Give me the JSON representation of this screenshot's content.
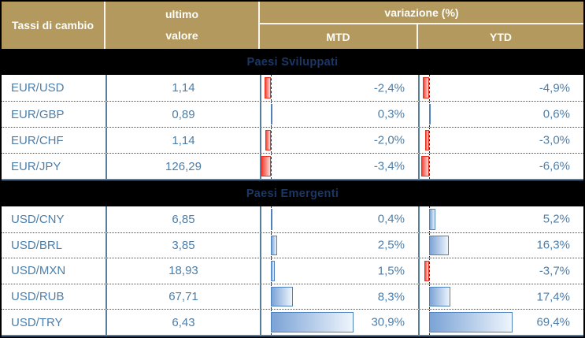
{
  "table": {
    "header": {
      "title": "Tassi di cambio",
      "last_value_line1": "ultimo",
      "last_value_line2": "valore",
      "variation": "variazione (%)",
      "mtd": "MTD",
      "ytd": "YTD"
    },
    "sections": [
      {
        "title": "Paesi Sviluppati",
        "rows": [
          {
            "pair": "EUR/USD",
            "value": "1,14",
            "mtd": -2.4,
            "mtd_label": "-2,4%",
            "ytd": -4.9,
            "ytd_label": "-4,9%"
          },
          {
            "pair": "EUR/GBP",
            "value": "0,89",
            "mtd": 0.3,
            "mtd_label": "0,3%",
            "ytd": 0.6,
            "ytd_label": "0,6%"
          },
          {
            "pair": "EUR/CHF",
            "value": "1,14",
            "mtd": -2.0,
            "mtd_label": "-2,0%",
            "ytd": -3.0,
            "ytd_label": "-3,0%"
          },
          {
            "pair": "EUR/JPY",
            "value": "126,29",
            "mtd": -3.4,
            "mtd_label": "-3,4%",
            "ytd": -6.6,
            "ytd_label": "-6,6%"
          }
        ]
      },
      {
        "title": "Paesi Emergenti",
        "rows": [
          {
            "pair": "USD/CNY",
            "value": "6,85",
            "mtd": 0.4,
            "mtd_label": "0,4%",
            "ytd": 5.2,
            "ytd_label": "5,2%"
          },
          {
            "pair": "USD/BRL",
            "value": "3,85",
            "mtd": 2.5,
            "mtd_label": "2,5%",
            "ytd": 16.3,
            "ytd_label": "16,3%"
          },
          {
            "pair": "USD/MXN",
            "value": "18,93",
            "mtd": 1.5,
            "mtd_label": "1,5%",
            "ytd": -3.7,
            "ytd_label": "-3,7%"
          },
          {
            "pair": "USD/RUB",
            "value": "67,71",
            "mtd": 8.3,
            "mtd_label": "8,3%",
            "ytd": 17.4,
            "ytd_label": "17,4%"
          },
          {
            "pair": "USD/TRY",
            "value": "6,43",
            "mtd": 30.9,
            "mtd_label": "30,9%",
            "ytd": 69.4,
            "ytd_label": "69,4%"
          }
        ]
      }
    ]
  },
  "chart_data": {
    "type": "table",
    "title": "Tassi di cambio",
    "columns": [
      "Tassi di cambio",
      "ultimo valore",
      "variazione (%) MTD",
      "variazione (%) YTD"
    ],
    "groups": [
      {
        "name": "Paesi Sviluppati",
        "rows": [
          {
            "pair": "EUR/USD",
            "ultimo_valore": 1.14,
            "mtd_pct": -2.4,
            "ytd_pct": -4.9
          },
          {
            "pair": "EUR/GBP",
            "ultimo_valore": 0.89,
            "mtd_pct": 0.3,
            "ytd_pct": 0.6
          },
          {
            "pair": "EUR/CHF",
            "ultimo_valore": 1.14,
            "mtd_pct": -2.0,
            "ytd_pct": -3.0
          },
          {
            "pair": "EUR/JPY",
            "ultimo_valore": 126.29,
            "mtd_pct": -3.4,
            "ytd_pct": -6.6
          }
        ]
      },
      {
        "name": "Paesi Emergenti",
        "rows": [
          {
            "pair": "USD/CNY",
            "ultimo_valore": 6.85,
            "mtd_pct": 0.4,
            "ytd_pct": 5.2
          },
          {
            "pair": "USD/BRL",
            "ultimo_valore": 3.85,
            "mtd_pct": 2.5,
            "ytd_pct": 16.3
          },
          {
            "pair": "USD/MXN",
            "ultimo_valore": 18.93,
            "mtd_pct": 1.5,
            "ytd_pct": -3.7
          },
          {
            "pair": "USD/RUB",
            "ultimo_valore": 67.71,
            "mtd_pct": 8.3,
            "ytd_pct": 17.4
          },
          {
            "pair": "USD/TRY",
            "ultimo_valore": 6.43,
            "mtd_pct": 30.9,
            "ytd_pct": 69.4
          }
        ]
      }
    ],
    "databar_axes": {
      "mtd": {
        "min": -3.5,
        "max": 54.8
      },
      "ytd": {
        "min": -7.7,
        "max": 127.7
      }
    },
    "legend_position": "none",
    "grid": "dotted row separators, dashed zero axis in percentage columns"
  },
  "colors": {
    "header_background": "#b4995e",
    "header_text": "#ffffff",
    "section_band_background": "#000000",
    "section_band_text": "#1b3766",
    "row_text": "#4d7ea8",
    "column_divider": "#54809e",
    "positive_bar": "#4f81bd",
    "negative_bar": "#e93223"
  }
}
